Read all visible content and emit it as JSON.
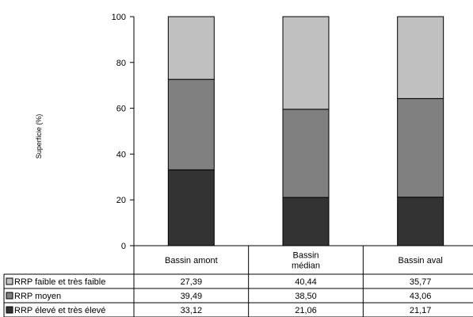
{
  "chart_data": {
    "type": "bar",
    "stacked": true,
    "ylabel": "Superficie (%)",
    "ylim": [
      0,
      100
    ],
    "yticks": [
      0,
      20,
      40,
      60,
      80,
      100
    ],
    "grid": false,
    "categories": [
      [
        "Bassin amont"
      ],
      [
        "Bassin",
        "médian"
      ],
      [
        "Bassin aval"
      ]
    ],
    "series": [
      {
        "name": "RRP élevé et très élevé",
        "color": "#333333",
        "values": [
          33.12,
          21.06,
          21.17
        ],
        "labels": [
          "33,12",
          "21,06",
          "21,17"
        ]
      },
      {
        "name": "RRP moyen",
        "color": "#808080",
        "values": [
          39.49,
          38.5,
          43.06
        ],
        "labels": [
          "39,49",
          "38,50",
          "43,06"
        ]
      },
      {
        "name": "RRP faible et très faible",
        "color": "#c0c0c0",
        "values": [
          27.39,
          40.44,
          35.77
        ],
        "labels": [
          "27,39",
          "40,44",
          "35,77"
        ]
      }
    ],
    "table_row_order": [
      2,
      1,
      0
    ]
  }
}
